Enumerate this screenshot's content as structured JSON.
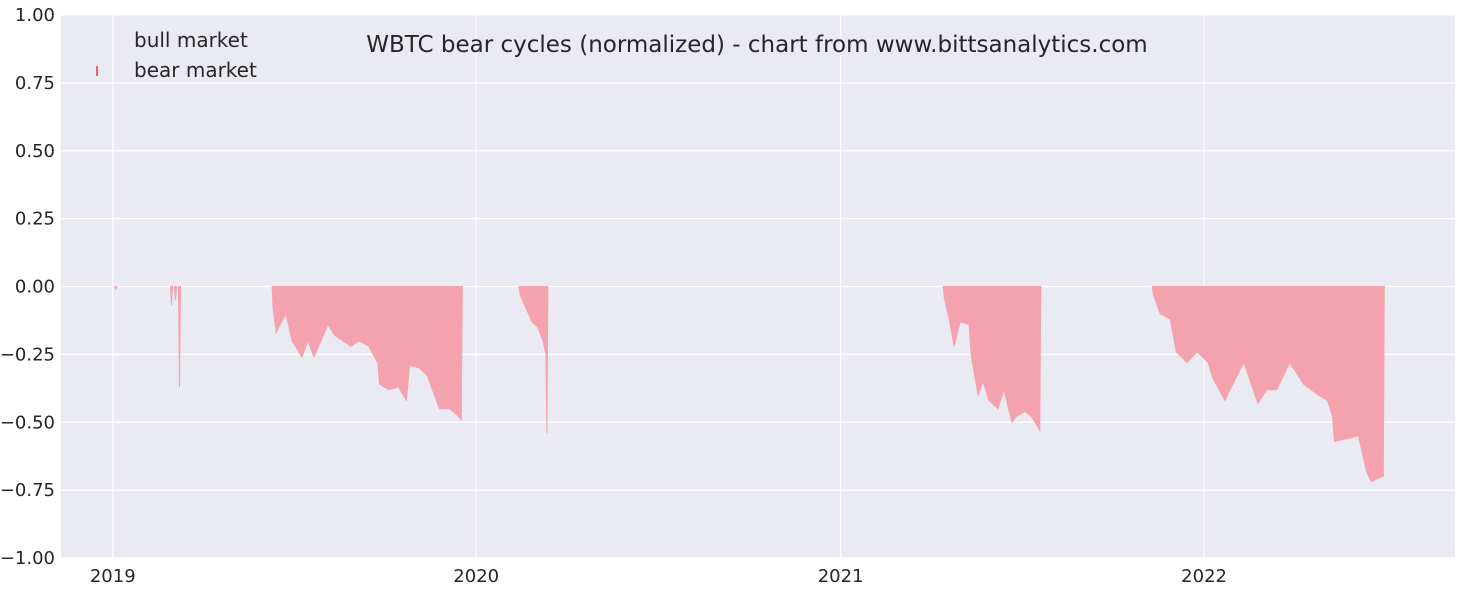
{
  "chart_data": {
    "type": "area",
    "title": "WBTC bear cycles (normalized)  - chart from www.bittsanalytics.com",
    "xlabel": "",
    "ylabel": "",
    "xlim": [
      "2018-11-10",
      "2022-09-10"
    ],
    "ylim": [
      -1.0,
      1.0
    ],
    "x_ticks": [
      {
        "value": "2019-01-01",
        "label": "2019"
      },
      {
        "value": "2020-01-01",
        "label": "2020"
      },
      {
        "value": "2021-01-01",
        "label": "2021"
      },
      {
        "value": "2022-01-01",
        "label": "2022"
      }
    ],
    "y_ticks": [
      {
        "value": 1.0,
        "label": "1.00"
      },
      {
        "value": 0.75,
        "label": "0.75"
      },
      {
        "value": 0.5,
        "label": "0.50"
      },
      {
        "value": 0.25,
        "label": "0.25"
      },
      {
        "value": 0.0,
        "label": "0.00"
      },
      {
        "value": -0.25,
        "label": "−0.25"
      },
      {
        "value": -0.5,
        "label": "−0.50"
      },
      {
        "value": -0.75,
        "label": "−0.75"
      },
      {
        "value": -1.0,
        "label": "−1.00"
      }
    ],
    "grid": true,
    "legend_position": "top-left",
    "colors": {
      "background": "#EAEAF2",
      "grid": "#FFFFFF",
      "bear": "#F4A3AE",
      "legend_bear_marker": "#E8616F"
    },
    "series": [
      {
        "name": "bull market",
        "values": []
      },
      {
        "name": "bear market",
        "points": [
          {
            "x": "2019-01-03",
            "y": 0.0
          },
          {
            "x": "2019-01-04",
            "y": -0.01
          },
          {
            "x": "2019-01-05",
            "y": 0.0
          },
          {
            "x": "2019-02-28",
            "y": 0.0
          },
          {
            "x": "2019-03-01",
            "y": -0.07
          },
          {
            "x": "2019-03-02",
            "y": 0.0
          },
          {
            "x": "2019-03-04",
            "y": 0.0
          },
          {
            "x": "2019-03-05",
            "y": -0.05
          },
          {
            "x": "2019-03-06",
            "y": 0.0
          },
          {
            "x": "2019-03-08",
            "y": 0.0
          },
          {
            "x": "2019-03-09",
            "y": -0.37
          },
          {
            "x": "2019-03-10",
            "y": 0.0
          },
          {
            "x": "2019-06-10",
            "y": 0.0
          },
          {
            "x": "2019-06-11",
            "y": -0.08
          },
          {
            "x": "2019-06-14",
            "y": -0.17
          },
          {
            "x": "2019-06-18",
            "y": -0.14
          },
          {
            "x": "2019-06-24",
            "y": -0.1
          },
          {
            "x": "2019-06-30",
            "y": -0.2
          },
          {
            "x": "2019-07-05",
            "y": -0.23
          },
          {
            "x": "2019-07-10",
            "y": -0.26
          },
          {
            "x": "2019-07-16",
            "y": -0.2
          },
          {
            "x": "2019-07-22",
            "y": -0.26
          },
          {
            "x": "2019-07-28",
            "y": -0.21
          },
          {
            "x": "2019-08-05",
            "y": -0.14
          },
          {
            "x": "2019-08-12",
            "y": -0.18
          },
          {
            "x": "2019-08-20",
            "y": -0.2
          },
          {
            "x": "2019-08-28",
            "y": -0.22
          },
          {
            "x": "2019-09-05",
            "y": -0.2
          },
          {
            "x": "2019-09-15",
            "y": -0.22
          },
          {
            "x": "2019-09-24",
            "y": -0.28
          },
          {
            "x": "2019-09-26",
            "y": -0.36
          },
          {
            "x": "2019-10-05",
            "y": -0.38
          },
          {
            "x": "2019-10-15",
            "y": -0.37
          },
          {
            "x": "2019-10-23",
            "y": -0.42
          },
          {
            "x": "2019-10-26",
            "y": -0.29
          },
          {
            "x": "2019-11-05",
            "y": -0.3
          },
          {
            "x": "2019-11-13",
            "y": -0.33
          },
          {
            "x": "2019-11-20",
            "y": -0.4
          },
          {
            "x": "2019-11-25",
            "y": -0.45
          },
          {
            "x": "2019-12-05",
            "y": -0.45
          },
          {
            "x": "2019-12-12",
            "y": -0.47
          },
          {
            "x": "2019-12-17",
            "y": -0.49
          },
          {
            "x": "2019-12-18",
            "y": 0.0
          },
          {
            "x": "2020-02-13",
            "y": 0.0
          },
          {
            "x": "2020-02-14",
            "y": -0.03
          },
          {
            "x": "2020-02-20",
            "y": -0.08
          },
          {
            "x": "2020-02-26",
            "y": -0.13
          },
          {
            "x": "2020-03-03",
            "y": -0.15
          },
          {
            "x": "2020-03-08",
            "y": -0.2
          },
          {
            "x": "2020-03-11",
            "y": -0.25
          },
          {
            "x": "2020-03-12",
            "y": -0.54
          },
          {
            "x": "2020-03-13",
            "y": 0.0
          },
          {
            "x": "2021-04-14",
            "y": 0.0
          },
          {
            "x": "2021-04-15",
            "y": -0.04
          },
          {
            "x": "2021-04-20",
            "y": -0.12
          },
          {
            "x": "2021-04-25",
            "y": -0.22
          },
          {
            "x": "2021-05-01",
            "y": -0.13
          },
          {
            "x": "2021-05-10",
            "y": -0.14
          },
          {
            "x": "2021-05-12",
            "y": -0.25
          },
          {
            "x": "2021-05-19",
            "y": -0.4
          },
          {
            "x": "2021-05-24",
            "y": -0.35
          },
          {
            "x": "2021-05-30",
            "y": -0.42
          },
          {
            "x": "2021-06-08",
            "y": -0.45
          },
          {
            "x": "2021-06-14",
            "y": -0.38
          },
          {
            "x": "2021-06-22",
            "y": -0.5
          },
          {
            "x": "2021-06-26",
            "y": -0.48
          },
          {
            "x": "2021-07-05",
            "y": -0.46
          },
          {
            "x": "2021-07-12",
            "y": -0.48
          },
          {
            "x": "2021-07-20",
            "y": -0.53
          },
          {
            "x": "2021-07-21",
            "y": 0.0
          },
          {
            "x": "2021-11-10",
            "y": 0.0
          },
          {
            "x": "2021-11-11",
            "y": -0.03
          },
          {
            "x": "2021-11-18",
            "y": -0.1
          },
          {
            "x": "2021-11-28",
            "y": -0.12
          },
          {
            "x": "2021-12-04",
            "y": -0.24
          },
          {
            "x": "2021-12-15",
            "y": -0.28
          },
          {
            "x": "2021-12-25",
            "y": -0.24
          },
          {
            "x": "2022-01-05",
            "y": -0.28
          },
          {
            "x": "2022-01-10",
            "y": -0.34
          },
          {
            "x": "2022-01-22",
            "y": -0.42
          },
          {
            "x": "2022-01-27",
            "y": -0.38
          },
          {
            "x": "2022-02-10",
            "y": -0.28
          },
          {
            "x": "2022-02-24",
            "y": -0.43
          },
          {
            "x": "2022-03-05",
            "y": -0.38
          },
          {
            "x": "2022-03-15",
            "y": -0.38
          },
          {
            "x": "2022-03-28",
            "y": -0.28
          },
          {
            "x": "2022-04-11",
            "y": -0.36
          },
          {
            "x": "2022-04-26",
            "y": -0.4
          },
          {
            "x": "2022-05-05",
            "y": -0.42
          },
          {
            "x": "2022-05-10",
            "y": -0.48
          },
          {
            "x": "2022-05-12",
            "y": -0.57
          },
          {
            "x": "2022-05-25",
            "y": -0.56
          },
          {
            "x": "2022-06-05",
            "y": -0.55
          },
          {
            "x": "2022-06-13",
            "y": -0.68
          },
          {
            "x": "2022-06-18",
            "y": -0.72
          },
          {
            "x": "2022-06-28",
            "y": -0.7
          },
          {
            "x": "2022-06-30",
            "y": -0.7
          },
          {
            "x": "2022-07-01",
            "y": 0.0
          }
        ]
      }
    ]
  }
}
